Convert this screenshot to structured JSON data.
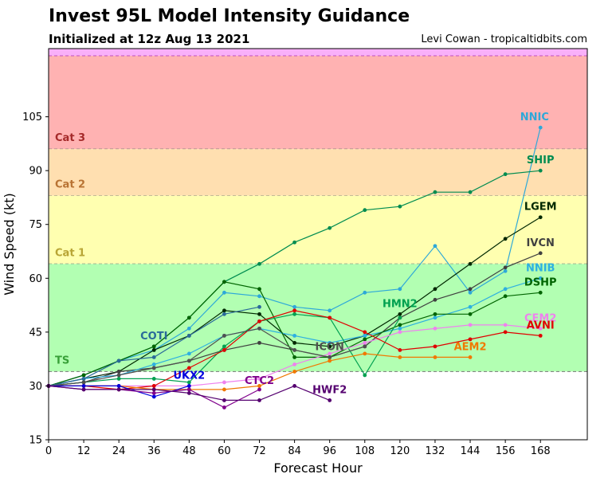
{
  "header": {
    "title": "Invest 95L Model Intensity Guidance",
    "subtitle": "Initialized at 12z Aug 13 2021",
    "credit": "Levi Cowan - tropicaltidbits.com"
  },
  "chart_data": {
    "type": "line",
    "xlabel": "Forecast Hour",
    "ylabel": "Wind Speed (kt)",
    "xlim": [
      0,
      184
    ],
    "ylim": [
      15,
      124
    ],
    "xticks": [
      0,
      12,
      24,
      36,
      48,
      60,
      72,
      84,
      96,
      108,
      120,
      132,
      144,
      156,
      168
    ],
    "yticks": [
      15,
      30,
      45,
      60,
      75,
      90,
      105
    ],
    "grid": false,
    "bands": [
      {
        "label": "",
        "from": 122,
        "to": 124,
        "color": "#f9b0f9"
      },
      {
        "label": "Cat 3",
        "from": 96,
        "to": 122,
        "color": "#ffb2b2",
        "label_color": "#a52a2a"
      },
      {
        "label": "Cat 2",
        "from": 83,
        "to": 96,
        "color": "#ffdfb0",
        "label_color": "#b87333"
      },
      {
        "label": "Cat 1",
        "from": 64,
        "to": 83,
        "color": "#ffffb0",
        "label_color": "#b8a535"
      },
      {
        "label": "TS",
        "from": 34,
        "to": 64,
        "color": "#b2ffb2",
        "label_color": "#38a038"
      }
    ],
    "series": [
      {
        "name": "NNIC",
        "color": "#2ea8d8",
        "x": [
          0,
          12,
          24,
          36,
          48,
          60,
          72,
          84,
          96,
          108,
          120,
          132,
          144,
          156,
          168
        ],
        "y": [
          30,
          33,
          37,
          40,
          46,
          56,
          55,
          52,
          51,
          56,
          57,
          69,
          56,
          62,
          102
        ],
        "label_x": 166,
        "label_y": 104
      },
      {
        "name": "SHIP",
        "color": "#008c50",
        "x": [
          0,
          12,
          24,
          36,
          48,
          60,
          72,
          84,
          96,
          108,
          120,
          132,
          144,
          156,
          168
        ],
        "y": [
          30,
          33,
          37,
          41,
          49,
          59,
          64,
          70,
          74,
          79,
          80,
          84,
          84,
          89,
          90
        ],
        "label_x": 168,
        "label_y": 92
      },
      {
        "name": "LGEM",
        "color": "#002800",
        "x": [
          0,
          12,
          24,
          36,
          48,
          60,
          72,
          84,
          96,
          108,
          120,
          132,
          144,
          156,
          168
        ],
        "y": [
          30,
          32,
          34,
          40,
          44,
          51,
          50,
          42,
          41,
          44,
          50,
          57,
          64,
          71,
          77
        ],
        "label_x": 168,
        "label_y": 79
      },
      {
        "name": "IVCN",
        "color": "#404040",
        "x": [
          0,
          12,
          24,
          36,
          48,
          60,
          72,
          84,
          96,
          108,
          120,
          132,
          144,
          156,
          168
        ],
        "y": [
          30,
          31,
          34,
          35,
          37,
          40,
          42,
          40,
          38,
          41,
          49,
          54,
          57,
          63,
          67
        ],
        "label_x": 168,
        "label_y": 69
      },
      {
        "name": "NNIB",
        "color": "#2eb0e0",
        "x": [
          0,
          12,
          24,
          36,
          48,
          60,
          72,
          84,
          96,
          108,
          120,
          132,
          144,
          156,
          168
        ],
        "y": [
          30,
          32,
          33,
          36,
          39,
          44,
          46,
          44,
          42,
          44,
          46,
          49,
          52,
          57,
          60
        ],
        "label_x": 168,
        "label_y": 62
      },
      {
        "name": "DSHP",
        "color": "#006400",
        "x": [
          0,
          12,
          24,
          36,
          48,
          60,
          72,
          84,
          96,
          108,
          120,
          132,
          144,
          156,
          168
        ],
        "y": [
          30,
          33,
          37,
          41,
          49,
          59,
          57,
          38,
          38,
          43,
          47,
          50,
          50,
          55,
          56
        ],
        "label_x": 168,
        "label_y": 58
      },
      {
        "name": "HMN2",
        "color": "#00a050",
        "x": [
          0,
          12,
          24,
          36,
          48,
          60,
          72,
          84,
          96,
          108,
          120,
          132,
          144,
          156,
          168
        ],
        "y": [
          30,
          31,
          32,
          32,
          31,
          41,
          48,
          50,
          49,
          33,
          49,
          null,
          null,
          null,
          null
        ],
        "label_x": 120,
        "label_y": 52
      },
      {
        "name": "CEM2",
        "color": "#ee82ee",
        "x": [
          0,
          12,
          24,
          36,
          48,
          60,
          72,
          84,
          96,
          108,
          120,
          132,
          144,
          156,
          168
        ],
        "y": [
          30,
          30,
          30,
          30,
          30,
          31,
          32,
          36,
          39,
          42,
          45,
          46,
          47,
          47,
          46
        ],
        "label_x": 168,
        "label_y": 48
      },
      {
        "name": "AVNI",
        "color": "#e00000",
        "x": [
          0,
          12,
          24,
          36,
          48,
          60,
          72,
          84,
          96,
          108,
          120,
          132,
          144,
          156,
          168
        ],
        "y": [
          30,
          30,
          29,
          30,
          35,
          40,
          48,
          51,
          49,
          45,
          40,
          41,
          43,
          45,
          44
        ],
        "label_x": 168,
        "label_y": 46
      },
      {
        "name": "COTI",
        "color": "#2a6a9a",
        "x": [
          0,
          12,
          24,
          36,
          48,
          60,
          72,
          84,
          96,
          108,
          120,
          132,
          144,
          156,
          168
        ],
        "y": [
          30,
          32,
          37,
          38,
          44,
          50,
          52,
          null,
          null,
          null,
          null,
          null,
          null,
          null,
          null
        ],
        "label_x": 36,
        "label_y": 43
      },
      {
        "name": "ICON",
        "color": "#505050",
        "x": [
          0,
          12,
          24,
          36,
          48,
          60,
          72,
          84,
          96,
          108,
          120,
          132,
          144,
          156,
          168
        ],
        "y": [
          30,
          31,
          33,
          35,
          37,
          44,
          46,
          40,
          38,
          41,
          null,
          null,
          null,
          null,
          null
        ],
        "label_x": 96,
        "label_y": 40
      },
      {
        "name": "AEM2",
        "color": "#f07800",
        "x": [
          0,
          12,
          24,
          36,
          48,
          60,
          72,
          84,
          96,
          108,
          120,
          132,
          144,
          156,
          168
        ],
        "y": [
          30,
          30,
          30,
          29,
          29,
          29,
          30,
          34,
          37,
          39,
          38,
          38,
          38,
          null,
          null
        ],
        "label_x": 144,
        "label_y": 40
      },
      {
        "name": "UKX2",
        "color": "#0000dd",
        "x": [
          0,
          12,
          24,
          36,
          48,
          60,
          72,
          84,
          96,
          108,
          120,
          132,
          144,
          156,
          168
        ],
        "y": [
          30,
          30,
          30,
          27,
          30,
          null,
          null,
          null,
          null,
          null,
          null,
          null,
          null,
          null,
          null
        ],
        "label_x": 48,
        "label_y": 32
      },
      {
        "name": "CTC2",
        "color": "#80008c",
        "x": [
          0,
          12,
          24,
          36,
          48,
          60,
          72,
          84,
          96,
          108,
          120,
          132,
          144,
          156,
          168
        ],
        "y": [
          30,
          29,
          29,
          28,
          29,
          24,
          29,
          null,
          null,
          null,
          null,
          null,
          null,
          null,
          null
        ],
        "label_x": 72,
        "label_y": 30.5
      },
      {
        "name": "HWF2",
        "color": "#550070",
        "x": [
          0,
          12,
          24,
          36,
          48,
          60,
          72,
          84,
          96,
          108,
          120,
          132,
          144,
          156,
          168
        ],
        "y": [
          30,
          29,
          29,
          29,
          28,
          26,
          26,
          30,
          26,
          null,
          null,
          null,
          null,
          null,
          null
        ],
        "label_x": 96,
        "label_y": 28
      }
    ]
  }
}
